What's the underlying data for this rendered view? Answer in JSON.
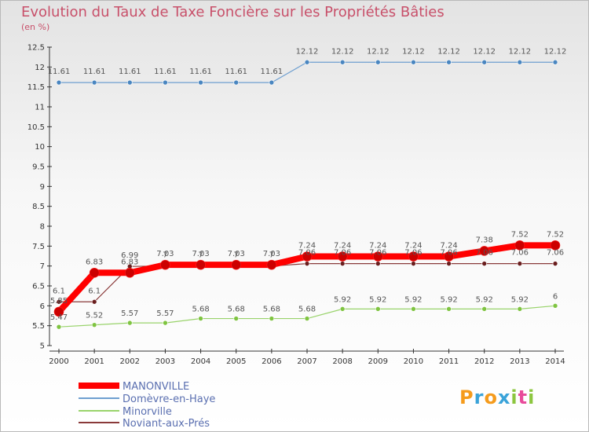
{
  "chart_data": {
    "type": "line",
    "title": "Evolution du Taux de Taxe Foncière sur les Propriétés Bâties",
    "subtitle": "(en %)",
    "x": [
      "2000",
      "2001",
      "2002",
      "2003",
      "2004",
      "2005",
      "2006",
      "2007",
      "2008",
      "2009",
      "2010",
      "2011",
      "2012",
      "2013",
      "2014"
    ],
    "ylim": [
      5,
      12.5
    ],
    "yticks": [
      "5",
      "5.5",
      "6",
      "6.5",
      "7",
      "7.5",
      "8",
      "8.5",
      "9",
      "9.5",
      "10",
      "10.5",
      "11",
      "11.5",
      "12",
      "12.5"
    ],
    "series": [
      {
        "name": "MANONVILLE",
        "color": "#ff0000",
        "values": [
          5.85,
          6.83,
          6.83,
          7.03,
          7.03,
          7.03,
          7.03,
          7.24,
          7.24,
          7.24,
          7.24,
          7.24,
          7.38,
          7.52,
          7.52
        ],
        "labels": [
          "5.85",
          "6.83",
          "6.83",
          "7.03",
          "7.03",
          "7.03",
          "7.03",
          "7.24",
          "7.24",
          "7.24",
          "7.24",
          "7.24",
          "7.38",
          "7.52",
          "7.52"
        ]
      },
      {
        "name": "Domèvre-en-Haye",
        "color": "#6e9fd0",
        "values": [
          11.61,
          11.61,
          11.61,
          11.61,
          11.61,
          11.61,
          11.61,
          12.12,
          12.12,
          12.12,
          12.12,
          12.12,
          12.12,
          12.12,
          12.12
        ],
        "labels": [
          "11.61",
          "11.61",
          "11.61",
          "11.61",
          "11.61",
          "11.61",
          "11.61",
          "12.12",
          "12.12",
          "12.12",
          "12.12",
          "12.12",
          "12.12",
          "12.12",
          "12.12"
        ]
      },
      {
        "name": "Minorville",
        "color": "#99d36b",
        "values": [
          5.47,
          5.52,
          5.57,
          5.57,
          5.68,
          5.68,
          5.68,
          5.68,
          5.92,
          5.92,
          5.92,
          5.92,
          5.92,
          5.92,
          6
        ],
        "labels": [
          "5.47",
          "5.52",
          "5.57",
          "5.57",
          "5.68",
          "5.68",
          "5.68",
          "5.68",
          "5.92",
          "5.92",
          "5.92",
          "5.92",
          "5.92",
          "5.92",
          "6"
        ]
      },
      {
        "name": "Noviant-aux-Prés",
        "color": "#8a3a3a",
        "values": [
          6.1,
          6.1,
          6.99,
          7,
          7,
          7,
          7,
          7.06,
          7.06,
          7.06,
          7.06,
          7.06,
          7.06,
          7.06,
          7.06
        ],
        "labels": [
          "6.1",
          "6.1",
          "6.99",
          "7",
          "7",
          "7",
          "7",
          "7.06",
          "7.06",
          "7.06",
          "7.06",
          "7.06",
          "7.06",
          "7.06",
          "7.06"
        ]
      }
    ]
  },
  "logo": {
    "text": "Proxiti"
  }
}
